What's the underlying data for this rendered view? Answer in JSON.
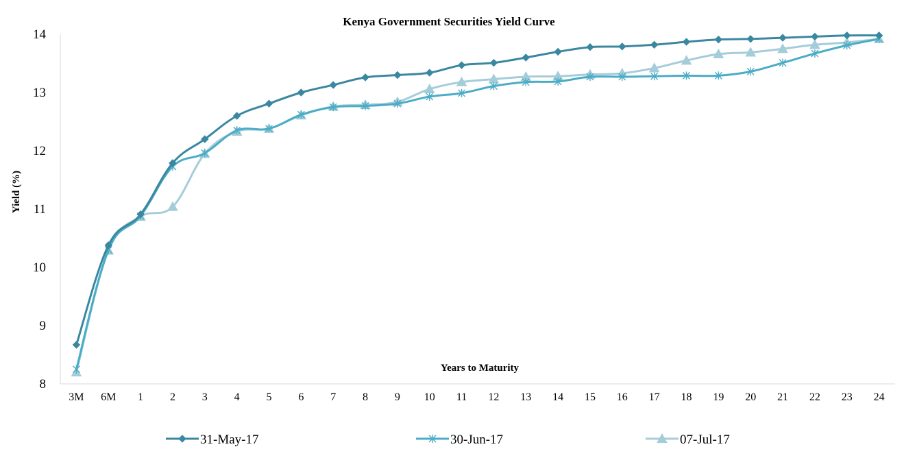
{
  "chart_data": {
    "type": "line",
    "title": "Kenya Government Securities Yield Curve",
    "xlabel": "Years to Maturity",
    "ylabel": "Yield (%)",
    "ylim": [
      8,
      14
    ],
    "yticks": [
      8,
      9,
      10,
      11,
      12,
      13,
      14
    ],
    "grid": false,
    "legend_position": "bottom",
    "categories": [
      "3M",
      "6M",
      "1",
      "2",
      "3",
      "4",
      "5",
      "6",
      "7",
      "8",
      "9",
      "10",
      "11",
      "12",
      "13",
      "14",
      "15",
      "16",
      "17",
      "18",
      "19",
      "20",
      "21",
      "22",
      "23",
      "24"
    ],
    "series": [
      {
        "name": "31-May-17",
        "color": "#3a87a0",
        "marker": "diamond",
        "values": [
          8.67,
          10.38,
          10.91,
          11.79,
          12.2,
          12.6,
          12.81,
          13.0,
          13.13,
          13.26,
          13.3,
          13.34,
          13.47,
          13.51,
          13.6,
          13.7,
          13.78,
          13.79,
          13.82,
          13.87,
          13.91,
          13.92,
          13.94,
          13.96,
          13.98,
          13.98
        ]
      },
      {
        "name": "30-Jun-17",
        "color": "#4bacc6",
        "marker": "star",
        "values": [
          8.25,
          10.3,
          10.88,
          11.73,
          11.96,
          12.35,
          12.38,
          12.62,
          12.75,
          12.77,
          12.81,
          12.93,
          12.99,
          13.11,
          13.18,
          13.19,
          13.27,
          13.27,
          13.28,
          13.29,
          13.29,
          13.36,
          13.51,
          13.67,
          13.81,
          13.92
        ]
      },
      {
        "name": "07-Jul-17",
        "color": "#a5cdd9",
        "marker": "triangle",
        "values": [
          8.2,
          10.29,
          10.87,
          11.04,
          11.95,
          12.33,
          12.38,
          12.61,
          12.76,
          12.79,
          12.84,
          13.06,
          13.18,
          13.23,
          13.27,
          13.28,
          13.31,
          13.33,
          13.42,
          13.55,
          13.66,
          13.69,
          13.75,
          13.82,
          13.86,
          13.92
        ]
      }
    ]
  }
}
